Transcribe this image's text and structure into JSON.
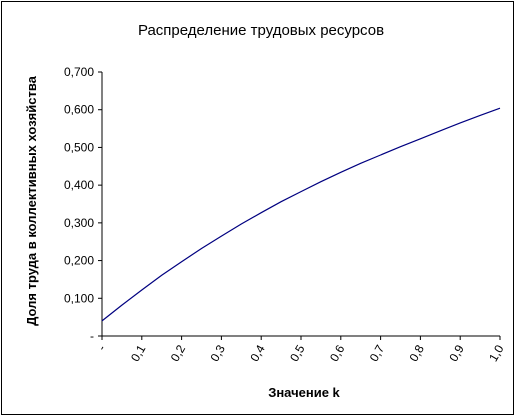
{
  "chart_data": {
    "type": "line",
    "title": "Распределение трудовых ресурсов",
    "xlabel": "Значение k",
    "ylabel": "Доля труда в коллективных хозяйства",
    "x_tick_labels": [
      "-",
      "0,1",
      "0,2",
      "0,3",
      "0,4",
      "0,5",
      "0,6",
      "0,7",
      "0,8",
      "0,9",
      "1,0"
    ],
    "y_tick_labels": [
      "-",
      "0,100",
      "0,200",
      "0,300",
      "0,400",
      "0,500",
      "0,600",
      "0,700"
    ],
    "xlim": [
      0,
      1.0
    ],
    "ylim": [
      0,
      0.7
    ],
    "grid": false,
    "line_color": "#000080",
    "series": [
      {
        "x": [
          0.0,
          0.05,
          0.1,
          0.15,
          0.2,
          0.25,
          0.3,
          0.35,
          0.4,
          0.45,
          0.5,
          0.55,
          0.6,
          0.65,
          0.7,
          0.75,
          0.8,
          0.85,
          0.9,
          0.95,
          1.0
        ],
        "values": [
          0.04,
          0.082,
          0.122,
          0.161,
          0.197,
          0.232,
          0.265,
          0.297,
          0.327,
          0.356,
          0.383,
          0.409,
          0.434,
          0.458,
          0.48,
          0.502,
          0.523,
          0.544,
          0.565,
          0.585,
          0.604
        ]
      }
    ]
  }
}
